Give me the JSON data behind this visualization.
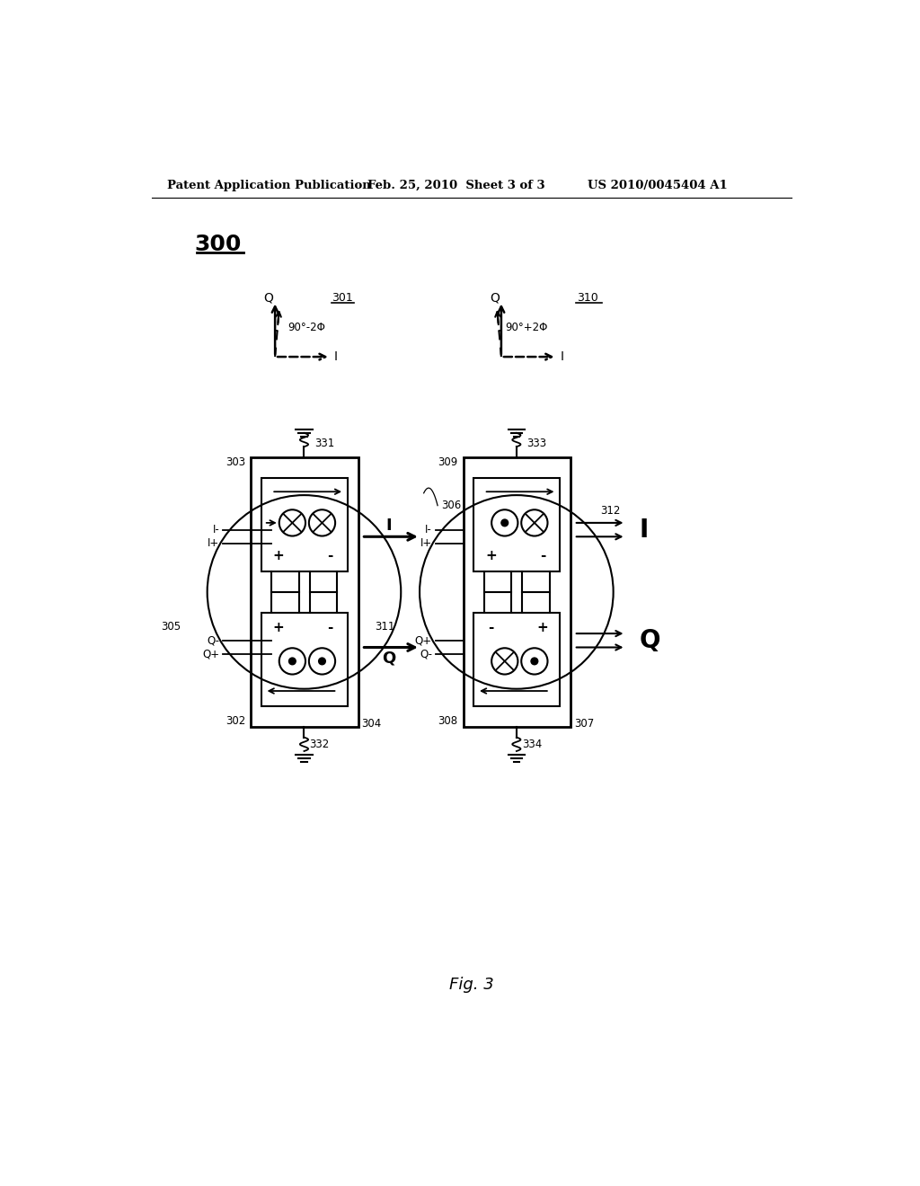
{
  "bg_color": "#ffffff",
  "header_left": "Patent Application Publication",
  "header_mid": "Feb. 25, 2010  Sheet 3 of 3",
  "header_right": "US 2010/0045404 A1",
  "fig_label": "Fig. 3",
  "diagram_label": "300",
  "phasor_left_label": "301",
  "phasor_left_angle": "90°-2Φ",
  "phasor_right_label": "310",
  "phasor_right_angle": "90°+2Φ",
  "lbl_331": "331",
  "lbl_332": "332",
  "lbl_333": "333",
  "lbl_334": "334",
  "lbl_303": "303",
  "lbl_302": "302",
  "lbl_304": "304",
  "lbl_305": "305",
  "lbl_306": "306",
  "lbl_307": "307",
  "lbl_308": "308",
  "lbl_309": "309",
  "lbl_311": "311",
  "lbl_312": "312",
  "arrow_I": "I",
  "arrow_Q": "Q",
  "out_I": "I",
  "out_Q": "Q"
}
